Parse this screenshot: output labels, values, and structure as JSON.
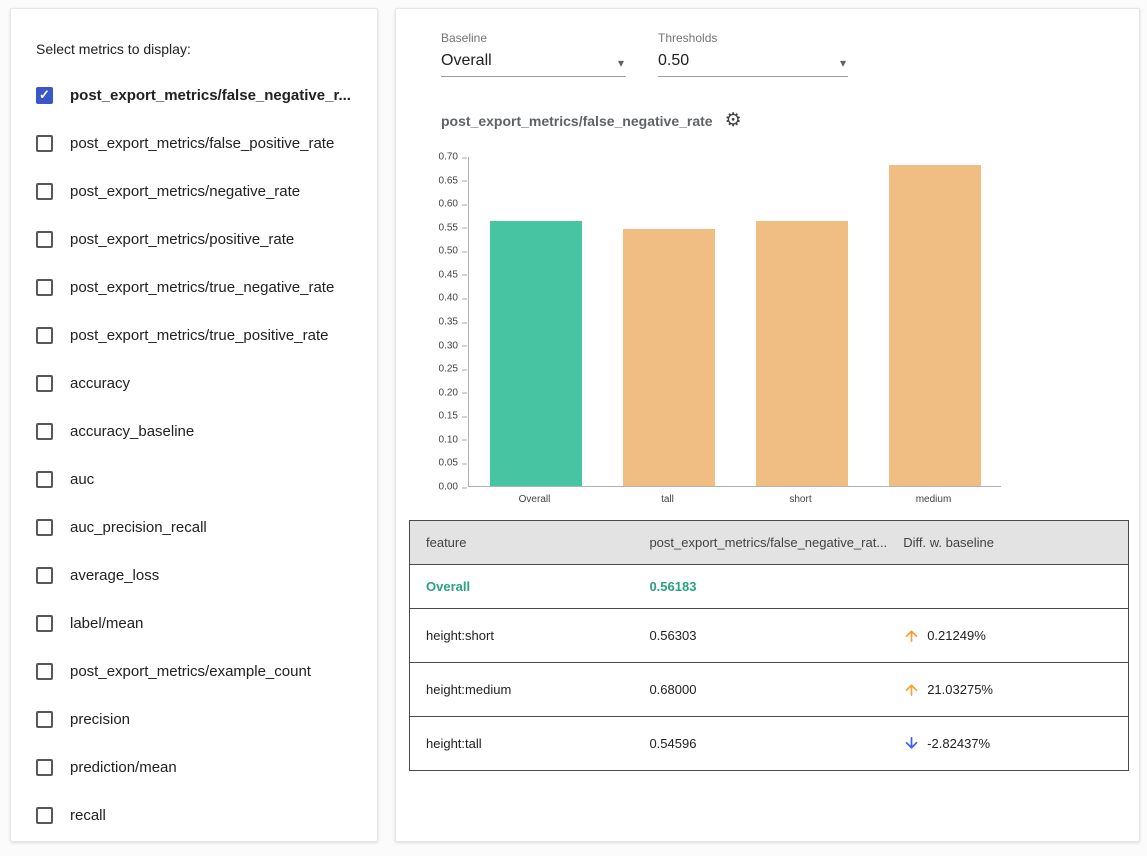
{
  "left_panel": {
    "title": "Select metrics to display:",
    "metrics": [
      {
        "label": "post_export_metrics/false_negative_r...",
        "checked": true
      },
      {
        "label": "post_export_metrics/false_positive_rate",
        "checked": false
      },
      {
        "label": "post_export_metrics/negative_rate",
        "checked": false
      },
      {
        "label": "post_export_metrics/positive_rate",
        "checked": false
      },
      {
        "label": "post_export_metrics/true_negative_rate",
        "checked": false
      },
      {
        "label": "post_export_metrics/true_positive_rate",
        "checked": false
      },
      {
        "label": "accuracy",
        "checked": false
      },
      {
        "label": "accuracy_baseline",
        "checked": false
      },
      {
        "label": "auc",
        "checked": false
      },
      {
        "label": "auc_precision_recall",
        "checked": false
      },
      {
        "label": "average_loss",
        "checked": false
      },
      {
        "label": "label/mean",
        "checked": false
      },
      {
        "label": "post_export_metrics/example_count",
        "checked": false
      },
      {
        "label": "precision",
        "checked": false
      },
      {
        "label": "prediction/mean",
        "checked": false
      },
      {
        "label": "recall",
        "checked": false
      }
    ]
  },
  "controls": {
    "baseline_label": "Baseline",
    "baseline_value": "Overall",
    "thresholds_label": "Thresholds",
    "thresholds_value": "0.50"
  },
  "chart_data": {
    "type": "bar",
    "title": "post_export_metrics/false_negative_rate",
    "categories": [
      "Overall",
      "tall",
      "short",
      "medium"
    ],
    "values": [
      0.56183,
      0.54596,
      0.56303,
      0.68
    ],
    "bar_colors": [
      "#47c4a2",
      "#f0bd82",
      "#f0bd82",
      "#f0bd82"
    ],
    "xlabel": "",
    "ylabel": "",
    "ylim": [
      0,
      0.7
    ],
    "ytick_step": 0.05,
    "grid": false,
    "legend": "none"
  },
  "table": {
    "headers": [
      "feature",
      "post_export_metrics/false_negative_rat...",
      "Diff. w. baseline"
    ],
    "rows": [
      {
        "feature": "Overall",
        "value": "0.56183",
        "diff": "",
        "direction": "none",
        "baseline": true
      },
      {
        "feature": "height:short",
        "value": "0.56303",
        "diff": "0.21249%",
        "direction": "up",
        "baseline": false
      },
      {
        "feature": "height:medium",
        "value": "0.68000",
        "diff": "21.03275%",
        "direction": "up",
        "baseline": false
      },
      {
        "feature": "height:tall",
        "value": "0.54596",
        "diff": "-2.82437%",
        "direction": "down",
        "baseline": false
      }
    ]
  },
  "colors": {
    "baseline_bar": "#47c4a2",
    "slice_bar": "#f0bd82",
    "checkbox_checked": "#3a56c9",
    "baseline_text": "#2aa183",
    "up_arrow": "#f5a033",
    "down_arrow": "#3d5afe"
  }
}
